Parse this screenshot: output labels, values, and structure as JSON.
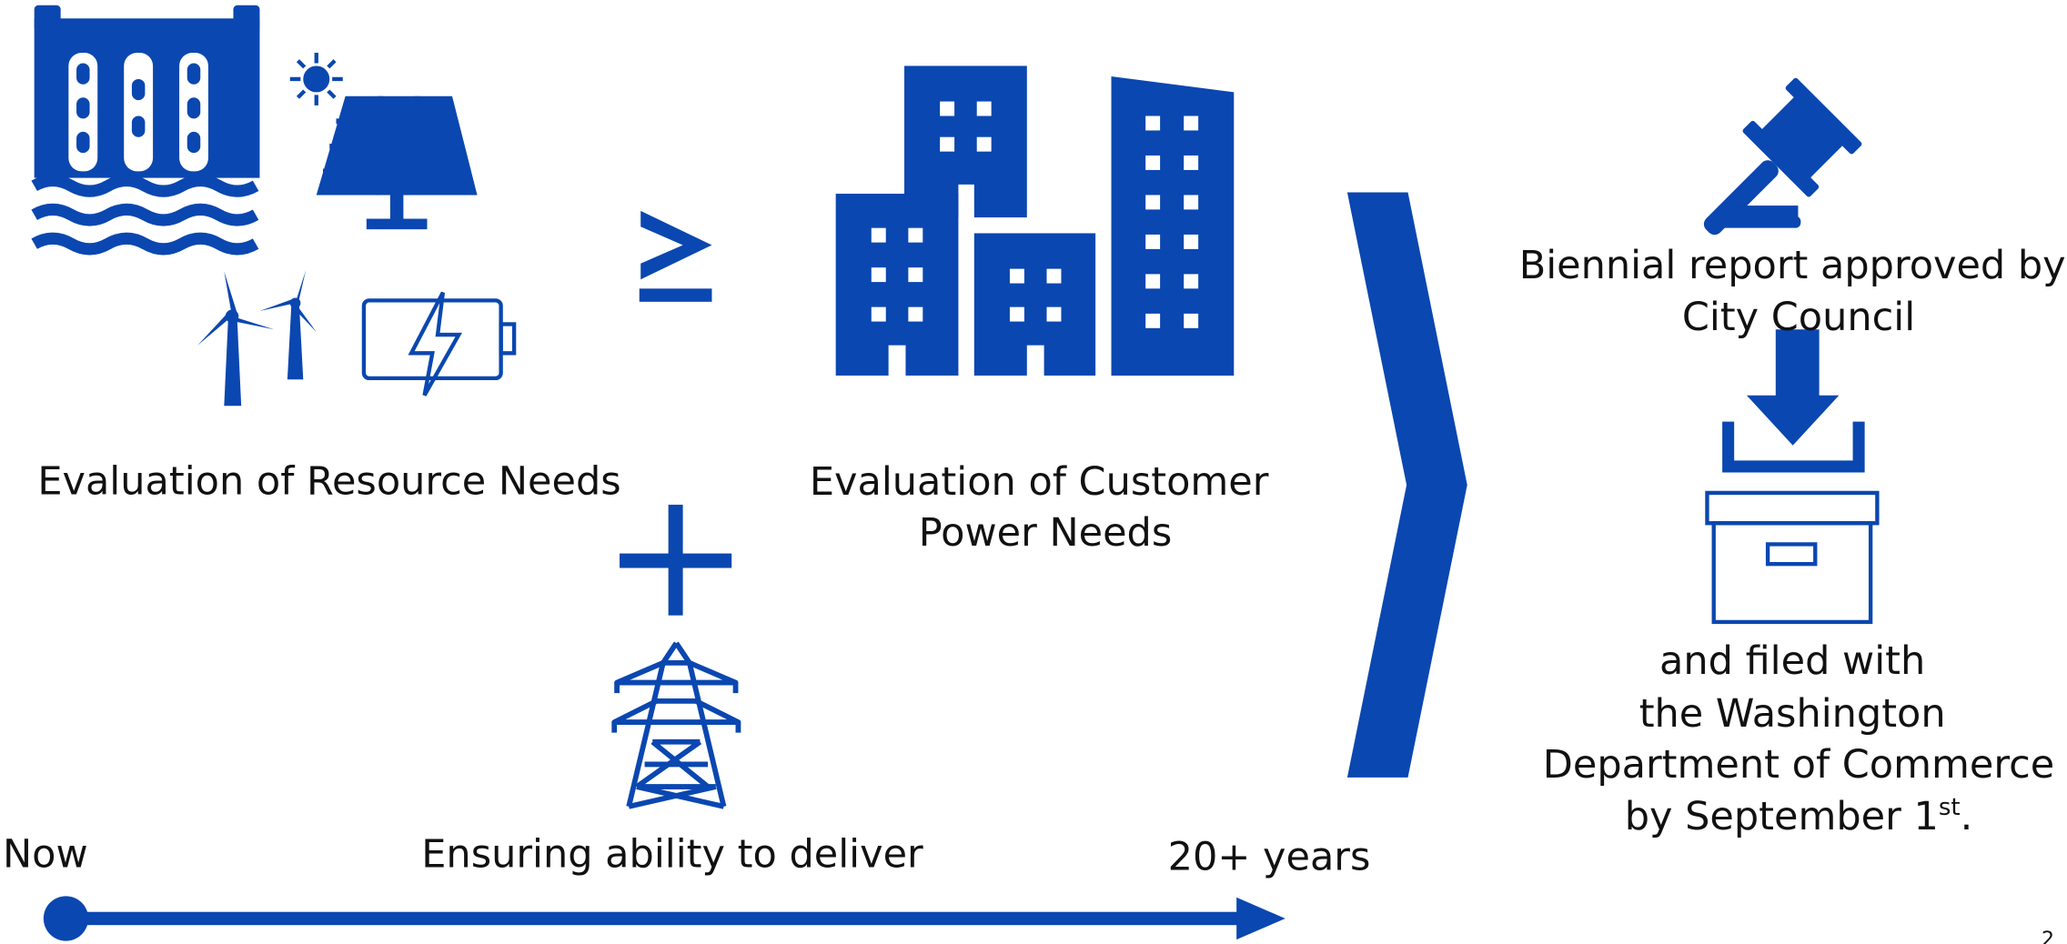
{
  "resource": {
    "label": "Evaluation of Resource Needs"
  },
  "customer": {
    "lines": [
      "Evaluation of Customer",
      "Power Needs"
    ]
  },
  "delivery": {
    "label": "Ensuring ability to deliver"
  },
  "timeline": {
    "start": "Now",
    "end": "20+ years"
  },
  "approval": {
    "lines": [
      "Biennial report approved by",
      "City Council"
    ]
  },
  "filing": {
    "lines": [
      "and filed with",
      "the Washington",
      "Department of Commerce"
    ],
    "last": {
      "text": "by September 1",
      "sup": "st",
      "end": "."
    }
  },
  "page_number": "2"
}
